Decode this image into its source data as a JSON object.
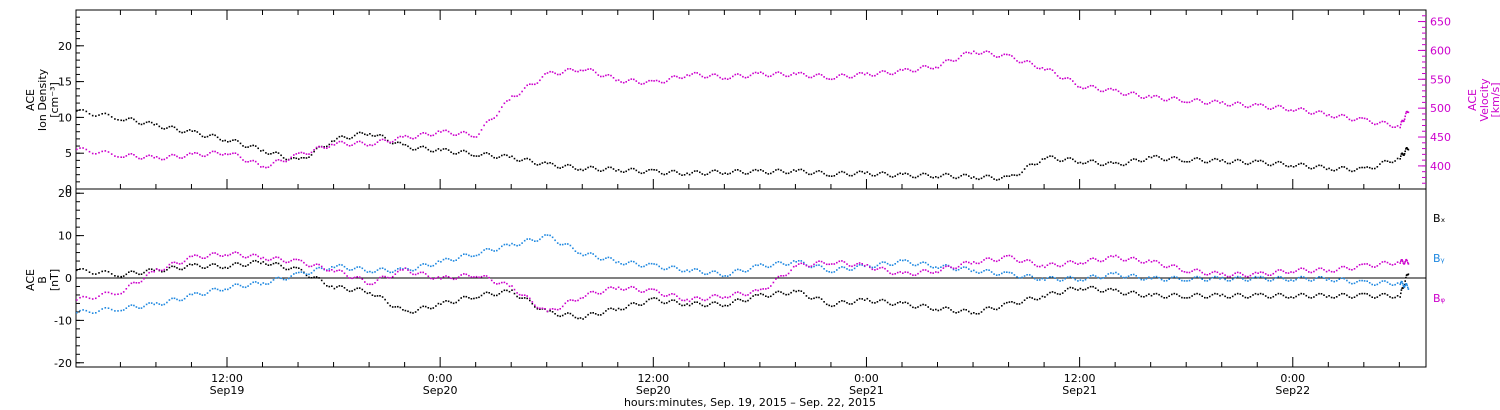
{
  "chart_data": [
    {
      "type": "scatter",
      "panel": "top",
      "ylabel_left": [
        "ACE",
        "Ion Density",
        "[cm⁻³]"
      ],
      "ylabel_right": [
        "ACE",
        "Velocity",
        "[km/s]"
      ],
      "y_left_lim": [
        0,
        25
      ],
      "y_left_ticks": [
        "0",
        "5",
        "10",
        "15",
        "20"
      ],
      "y_right_lim": [
        360,
        670
      ],
      "y_right_ticks": [
        "400",
        "450",
        "500",
        "550",
        "600",
        "650"
      ],
      "x_range_hours": [
        -8.5,
        67.5
      ],
      "series": [
        {
          "axis": "left",
          "color": "#000000",
          "x_hours": [
            -8.5,
            -6,
            -4,
            -2,
            0,
            2,
            4,
            6,
            8,
            10,
            12,
            14,
            16,
            18,
            20,
            22,
            24,
            26,
            28,
            30,
            32,
            34,
            36,
            38,
            40,
            42,
            44,
            46,
            48,
            50,
            52,
            54,
            56,
            58,
            60,
            62,
            64,
            66,
            66.5
          ],
          "values": [
            11,
            10,
            9,
            8,
            7,
            5.5,
            4,
            7,
            8,
            6,
            5.5,
            5,
            4.5,
            3.5,
            3,
            2.8,
            2.5,
            2.3,
            2.5,
            2.5,
            2.6,
            2.2,
            2.3,
            2.0,
            2.0,
            1.8,
            1.6,
            4.5,
            4.0,
            3.5,
            4.5,
            4.2,
            4.0,
            3.8,
            3.5,
            3.0,
            2.8,
            4.5,
            6.0
          ]
        },
        {
          "axis": "right",
          "color": "#cc00cc",
          "x_hours": [
            -8.5,
            -6,
            -4,
            -2,
            0,
            2,
            4,
            6,
            8,
            10,
            12,
            14,
            16,
            18,
            20,
            22,
            24,
            26,
            28,
            30,
            32,
            34,
            36,
            38,
            40,
            42,
            44,
            46,
            48,
            50,
            52,
            54,
            56,
            58,
            60,
            62,
            64,
            66,
            66.5
          ],
          "values": [
            430,
            420,
            415,
            420,
            425,
            400,
            420,
            440,
            440,
            450,
            460,
            455,
            520,
            560,
            570,
            550,
            545,
            560,
            555,
            560,
            560,
            555,
            560,
            565,
            575,
            600,
            590,
            570,
            540,
            530,
            520,
            515,
            510,
            505,
            500,
            490,
            480,
            470,
            500
          ]
        }
      ]
    },
    {
      "type": "scatter",
      "panel": "bottom",
      "ylabel_left": [
        "ACE",
        "B",
        "[nT]"
      ],
      "y_lim": [
        -21,
        21
      ],
      "y_ticks": [
        "20",
        "10",
        "0",
        "-10",
        "-20"
      ],
      "x_range_hours": [
        -8.5,
        67.5
      ],
      "legend_placement": "right",
      "series": [
        {
          "name": "Bₓ",
          "color": "#000000",
          "x_hours": [
            -8.5,
            -6,
            -4,
            -2,
            0,
            2,
            4,
            6,
            8,
            10,
            12,
            14,
            16,
            18,
            20,
            22,
            24,
            26,
            28,
            30,
            32,
            34,
            36,
            38,
            40,
            42,
            44,
            46,
            48,
            50,
            52,
            54,
            56,
            58,
            60,
            62,
            64,
            66,
            66.5
          ],
          "values": [
            2,
            1,
            2,
            3,
            3,
            4,
            2,
            -2,
            -3,
            -8,
            -6,
            -4,
            -3,
            -8,
            -9,
            -7,
            -5,
            -6,
            -6,
            -4,
            -3,
            -6,
            -5,
            -6,
            -7,
            -8,
            -6,
            -4,
            -2,
            -3,
            -4,
            -4,
            -4,
            -4,
            -4,
            -4,
            -4,
            -4,
            2
          ]
        },
        {
          "name": "Bᵧ",
          "color": "#1f88e0",
          "x_hours": [
            -8.5,
            -6,
            -4,
            -2,
            0,
            2,
            4,
            6,
            8,
            10,
            12,
            14,
            16,
            18,
            20,
            22,
            24,
            26,
            28,
            30,
            32,
            34,
            36,
            38,
            40,
            42,
            44,
            46,
            48,
            50,
            52,
            54,
            56,
            58,
            60,
            62,
            64,
            66,
            66.5
          ],
          "values": [
            -8,
            -7,
            -6,
            -4,
            -2,
            -1,
            1,
            3,
            2,
            2,
            4,
            6,
            8,
            10,
            6,
            4,
            3,
            2,
            1,
            3,
            4,
            2,
            3,
            4,
            3,
            2,
            1,
            0,
            0,
            1,
            0,
            0,
            0,
            0,
            0,
            0,
            -1,
            -1,
            -2
          ]
        },
        {
          "name": "Bᵩ",
          "color": "#cc00cc",
          "x_hours": [
            -8.5,
            -6,
            -4,
            -2,
            0,
            2,
            4,
            6,
            8,
            10,
            12,
            14,
            16,
            18,
            20,
            22,
            24,
            26,
            28,
            30,
            32,
            34,
            36,
            38,
            40,
            42,
            44,
            46,
            48,
            50,
            52,
            54,
            56,
            58,
            60,
            62,
            64,
            66,
            66.5
          ],
          "values": [
            -5,
            -3,
            2,
            5,
            6,
            5,
            4,
            2,
            -1,
            2,
            0,
            1,
            -2,
            -8,
            -4,
            -2,
            -3,
            -5,
            -4,
            -3,
            3,
            4,
            3,
            1,
            2,
            4,
            5,
            3,
            4,
            5,
            4,
            2,
            1,
            1,
            2,
            2,
            3,
            4,
            4
          ]
        }
      ]
    }
  ],
  "x_axis": {
    "ticks": [
      {
        "hours": 0,
        "time": "12:00",
        "date": "Sep19"
      },
      {
        "hours": 12,
        "time": "0:00",
        "date": "Sep20"
      },
      {
        "hours": 24,
        "time": "12:00",
        "date": "Sep20"
      },
      {
        "hours": 36,
        "time": "0:00",
        "date": "Sep21"
      },
      {
        "hours": 48,
        "time": "12:00",
        "date": "Sep21"
      },
      {
        "hours": 60,
        "time": "0:00",
        "date": "Sep22"
      }
    ],
    "xlabel": "hours:minutes, Sep. 19, 2015 – Sep. 22, 2015"
  }
}
